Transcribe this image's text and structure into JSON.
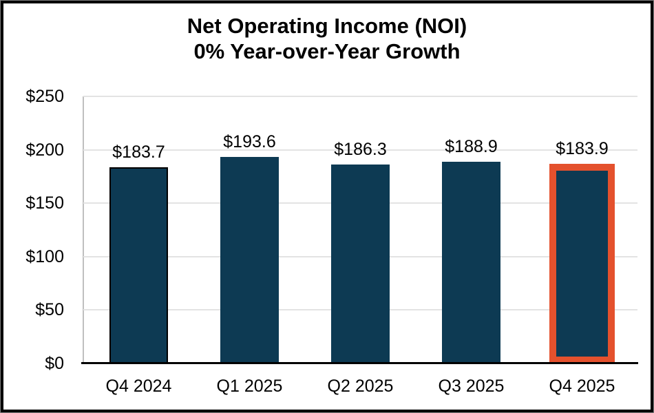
{
  "chart_data": {
    "type": "bar",
    "title": "Net Operating Income (NOI)",
    "subtitle": "0% Year-over-Year Growth",
    "categories": [
      "Q4 2024",
      "Q1 2025",
      "Q2 2025",
      "Q3 2025",
      "Q4 2025"
    ],
    "values": [
      183.7,
      193.6,
      186.3,
      188.9,
      183.9
    ],
    "value_labels": [
      "$183.7",
      "$193.6",
      "$186.3",
      "$188.9",
      "$183.9"
    ],
    "y_tick_labels": [
      "$250",
      "$200",
      "$150",
      "$100",
      "$50",
      "$0"
    ],
    "ylim": [
      0,
      250
    ],
    "grid": true,
    "legend": "none",
    "outlined_index": 0,
    "highlighted_index": 4,
    "colors": {
      "bar_fill": "#0D3A53",
      "bar_outline": "#000000",
      "highlight_outline": "#E4512D",
      "gridline": "#E3E3E3",
      "y_axis_line": "#BFBFBF",
      "x_axis_line": "#000000",
      "text": "#000000",
      "background": "#FFFFFF",
      "frame_border": "#000000"
    }
  }
}
